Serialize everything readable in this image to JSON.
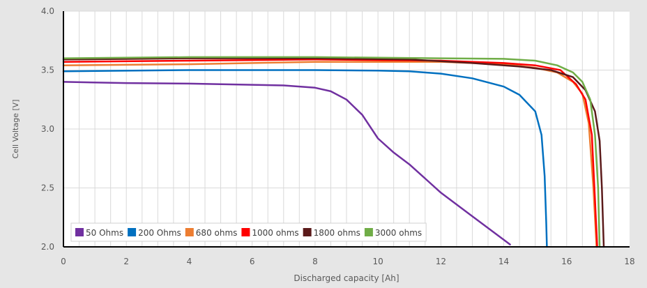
{
  "chart_data": {
    "type": "line",
    "title": "",
    "xlabel": "Discharged capacity [Ah]",
    "ylabel": "Cell Voltage [V]",
    "xlim": [
      0,
      18
    ],
    "ylim": [
      2.0,
      4.0
    ],
    "grid": true,
    "legend_position": "bottom-left",
    "x_ticks": [
      "0",
      "2",
      "4",
      "6",
      "8",
      "10",
      "12",
      "14",
      "16",
      "18"
    ],
    "y_ticks": [
      "2.0",
      "2.5",
      "3.0",
      "3.5",
      "4.0"
    ],
    "series": [
      {
        "name": "50 Ohms",
        "color": "#7030a0",
        "points": [
          [
            0,
            3.4
          ],
          [
            2,
            3.39
          ],
          [
            4,
            3.385
          ],
          [
            6,
            3.375
          ],
          [
            7,
            3.37
          ],
          [
            8,
            3.35
          ],
          [
            8.5,
            3.32
          ],
          [
            9,
            3.25
          ],
          [
            9.5,
            3.12
          ],
          [
            10,
            2.92
          ],
          [
            10.5,
            2.8
          ],
          [
            11,
            2.7
          ],
          [
            11.5,
            2.58
          ],
          [
            12,
            2.46
          ],
          [
            12.5,
            2.36
          ],
          [
            13,
            2.26
          ],
          [
            13.5,
            2.16
          ],
          [
            14,
            2.06
          ],
          [
            14.2,
            2.02
          ]
        ]
      },
      {
        "name": "200 Ohms",
        "color": "#0070c0",
        "points": [
          [
            0,
            3.49
          ],
          [
            4,
            3.5
          ],
          [
            8,
            3.5
          ],
          [
            10,
            3.495
          ],
          [
            11,
            3.49
          ],
          [
            12,
            3.47
          ],
          [
            13,
            3.43
          ],
          [
            14,
            3.36
          ],
          [
            14.5,
            3.29
          ],
          [
            15,
            3.15
          ],
          [
            15.2,
            2.95
          ],
          [
            15.3,
            2.6
          ],
          [
            15.35,
            2.2
          ],
          [
            15.37,
            2.0
          ]
        ]
      },
      {
        "name": "680 ohms",
        "color": "#ed7d31",
        "points": [
          [
            0,
            3.54
          ],
          [
            4,
            3.55
          ],
          [
            8,
            3.57
          ],
          [
            12,
            3.57
          ],
          [
            14,
            3.55
          ],
          [
            15,
            3.52
          ],
          [
            15.7,
            3.48
          ],
          [
            16.2,
            3.4
          ],
          [
            16.5,
            3.3
          ],
          [
            16.7,
            3.05
          ],
          [
            16.85,
            2.5
          ],
          [
            16.95,
            2.0
          ]
        ]
      },
      {
        "name": "1000 ohms",
        "color": "#ff0000",
        "points": [
          [
            0,
            3.57
          ],
          [
            4,
            3.58
          ],
          [
            8,
            3.59
          ],
          [
            12,
            3.58
          ],
          [
            14,
            3.56
          ],
          [
            15,
            3.54
          ],
          [
            15.8,
            3.5
          ],
          [
            16.3,
            3.38
          ],
          [
            16.6,
            3.25
          ],
          [
            16.8,
            2.95
          ],
          [
            16.9,
            2.4
          ],
          [
            16.97,
            2.0
          ]
        ]
      },
      {
        "name": "1800 ohms",
        "color": "#5b1a1a",
        "points": [
          [
            0,
            3.59
          ],
          [
            4,
            3.6
          ],
          [
            8,
            3.6
          ],
          [
            11,
            3.59
          ],
          [
            13,
            3.56
          ],
          [
            14.5,
            3.53
          ],
          [
            15.5,
            3.5
          ],
          [
            16.2,
            3.44
          ],
          [
            16.6,
            3.33
          ],
          [
            16.9,
            3.15
          ],
          [
            17.05,
            2.9
          ],
          [
            17.12,
            2.5
          ],
          [
            17.18,
            2.0
          ]
        ]
      },
      {
        "name": "3000 ohms",
        "color": "#70ad47",
        "points": [
          [
            0,
            3.6
          ],
          [
            4,
            3.61
          ],
          [
            8,
            3.61
          ],
          [
            12,
            3.6
          ],
          [
            14,
            3.595
          ],
          [
            15,
            3.58
          ],
          [
            15.7,
            3.54
          ],
          [
            16.2,
            3.48
          ],
          [
            16.5,
            3.4
          ],
          [
            16.75,
            3.25
          ],
          [
            16.9,
            2.95
          ],
          [
            17.0,
            2.5
          ],
          [
            17.05,
            2.0
          ]
        ]
      }
    ]
  }
}
